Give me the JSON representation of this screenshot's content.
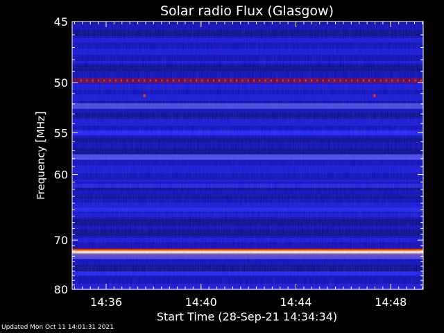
{
  "chart_data": {
    "type": "heatmap",
    "title": "Solar radio Flux (Glasgow)",
    "xlabel": "Start Time (28-Sep-21 14:34:34)",
    "ylabel_text": "Frequency ",
    "ylabel_unit": "MHz",
    "x_ticks": [
      "14:36",
      "14:40",
      "14:44",
      "14:48"
    ],
    "x_tick_minutes": [
      1.4333,
      5.4333,
      9.4333,
      13.4333
    ],
    "x_range_minutes": [
      0,
      14.8
    ],
    "y_ticks": [
      "45",
      "50",
      "55",
      "60",
      "70",
      "80"
    ],
    "y_tick_values": [
      45,
      50,
      55,
      60,
      70,
      80
    ],
    "y_range_mhz": [
      45,
      80
    ],
    "y_scale": "reciprocal",
    "colormap": [
      "#000064",
      "#0000c8",
      "#2828ff",
      "#6060ff",
      "#800040",
      "#c00000",
      "#ff4000",
      "#ffd000",
      "#ffffff"
    ],
    "bands": [
      {
        "mhz": 49.8,
        "intensity": 0.5
      },
      {
        "mhz": 52.2,
        "intensity": 0.35
      },
      {
        "mhz": 55.0,
        "intensity": 0.3
      },
      {
        "mhz": 57.8,
        "intensity": 0.38
      },
      {
        "mhz": 61.5,
        "intensity": 0.22
      },
      {
        "mhz": 65.0,
        "intensity": 0.2
      },
      {
        "mhz": 72.2,
        "intensity": 1.0
      },
      {
        "mhz": 73.0,
        "intensity": 0.42
      },
      {
        "mhz": 76.5,
        "intensity": 0.22
      }
    ],
    "dots_mhz": 49.8,
    "spot_events": [
      {
        "minute": 3.05,
        "mhz": 51.2
      },
      {
        "minute": 12.75,
        "mhz": 51.2
      }
    ]
  },
  "footer": "Updated Mon Oct 11 14:01:31 2021"
}
